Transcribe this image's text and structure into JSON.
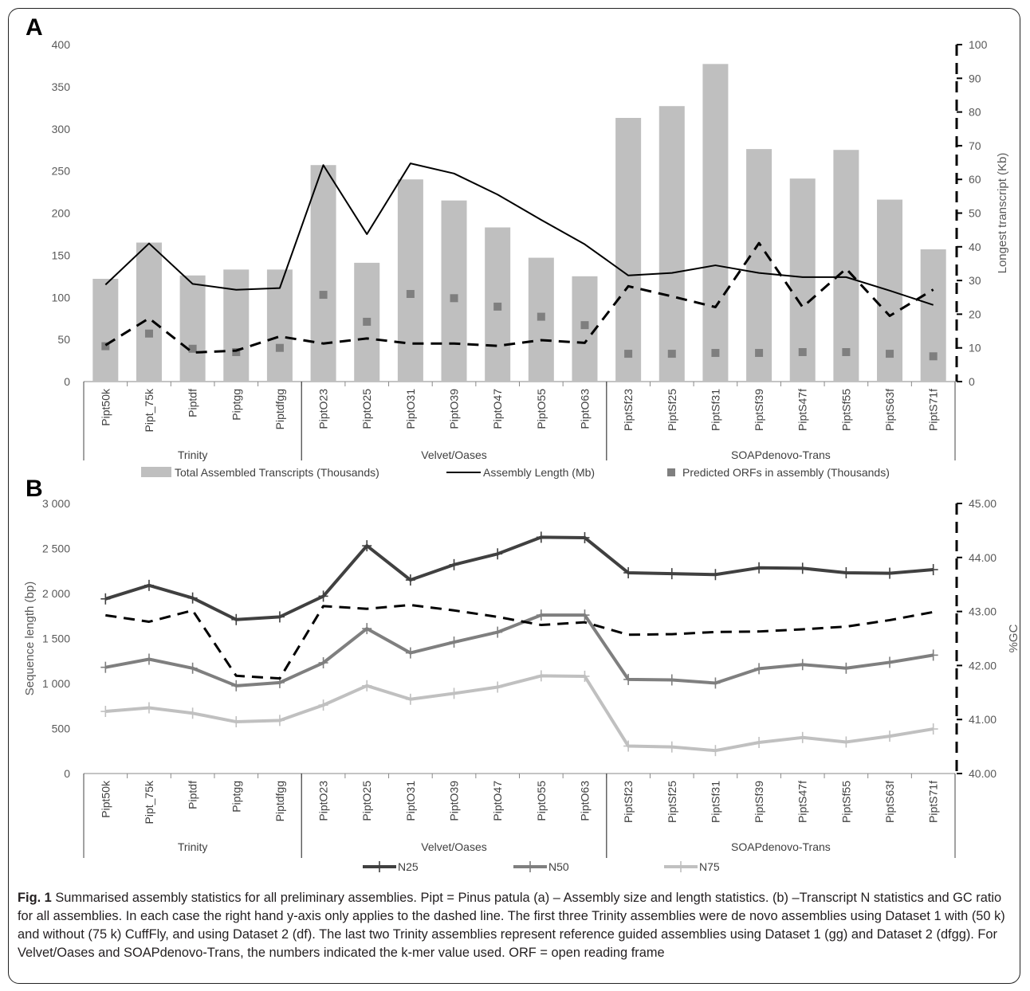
{
  "panel_a": {
    "label": "A",
    "left_ticks": [
      "0",
      "50",
      "100",
      "150",
      "200",
      "250",
      "300",
      "350",
      "400"
    ],
    "right_ticks": [
      "0",
      "10",
      "20",
      "30",
      "40",
      "50",
      "60",
      "70",
      "80",
      "90",
      "100"
    ],
    "right_axis_title": "Longest transcript (Kb)",
    "legend": [
      "Total Assembled Transcripts (Thousands)",
      "Assembly Length (Mb)",
      "Predicted ORFs in assembly (Thousands)"
    ]
  },
  "panel_b": {
    "label": "B",
    "left_ticks": [
      "0",
      "500",
      "1 000",
      "1 500",
      "2 000",
      "2 500",
      "3 000"
    ],
    "right_ticks": [
      "40.00",
      "41.00",
      "42.00",
      "43.00",
      "44.00",
      "45.00"
    ],
    "left_axis_title": "Sequence length (bp)",
    "right_axis_title": "%GC",
    "legend": [
      "N25",
      "N50",
      "N75"
    ]
  },
  "categories": [
    "Pipt50k",
    "Pipt_75k",
    "Piptdf",
    "Piptgg",
    "Piptdfgg",
    "PiptO23",
    "PiptO25",
    "PiptO31",
    "PiptO39",
    "PiptO47",
    "PiptO55",
    "PiptO63",
    "PiptSf23",
    "PiptSf25",
    "PiptSf31",
    "PiptSf39",
    "PiptS47f",
    "PiptSf55",
    "PiptS63f",
    "PiptS71f"
  ],
  "groups": [
    {
      "name": "Trinity",
      "start": 0,
      "end": 4
    },
    {
      "name": "Velvet/Oases",
      "start": 5,
      "end": 11
    },
    {
      "name": "SOAPdenovo-Trans",
      "start": 12,
      "end": 19
    }
  ],
  "chart_data": [
    {
      "type": "bar",
      "categories": [
        "Pipt50k",
        "Pipt_75k",
        "Piptdf",
        "Piptgg",
        "Piptdfgg",
        "PiptO23",
        "PiptO25",
        "PiptO31",
        "PiptO39",
        "PiptO47",
        "PiptO55",
        "PiptO63",
        "PiptSf23",
        "PiptSf25",
        "PiptSf31",
        "PiptSf39",
        "PiptS47f",
        "PiptSf55",
        "PiptS63f",
        "PiptS71f"
      ],
      "ylim": [
        0,
        400
      ],
      "y2lim": [
        0,
        100
      ],
      "series": [
        {
          "name": "Total Assembled Transcripts (Thousands)",
          "type": "bar",
          "axis": "left",
          "color": "#bfbfbf",
          "values": [
            122,
            165,
            126,
            133,
            133,
            257,
            141,
            240,
            215,
            183,
            147,
            125,
            313,
            327,
            377,
            276,
            241,
            275,
            216,
            157
          ]
        },
        {
          "name": "Assembly Length (Mb)",
          "type": "line",
          "axis": "left",
          "color": "#000000",
          "values": [
            115,
            164,
            116,
            109,
            111,
            257,
            175,
            259,
            247,
            222,
            192,
            163,
            126,
            129,
            138,
            129,
            124,
            124,
            108,
            91
          ]
        },
        {
          "name": "Predicted ORFs in assembly (Thousands)",
          "type": "scatter",
          "axis": "left",
          "color": "#7f7f7f",
          "values": [
            42,
            57,
            39,
            35,
            40,
            103,
            71,
            104,
            99,
            89,
            77,
            67,
            33,
            33,
            34,
            34,
            35,
            35,
            33,
            30
          ]
        },
        {
          "axis": "right",
          "type": "line",
          "dashed": true,
          "color": "#000000",
          "values": [
            10.8,
            18.8,
            8.6,
            9.2,
            13.4,
            11.3,
            12.8,
            11.3,
            11.3,
            10.6,
            12.3,
            11.5,
            28.3,
            25.3,
            22.1,
            41.1,
            22.1,
            33.5,
            19.5,
            27.3
          ]
        }
      ]
    },
    {
      "type": "line",
      "categories": [
        "Pipt50k",
        "Pipt_75k",
        "Piptdf",
        "Piptgg",
        "Piptdfgg",
        "PiptO23",
        "PiptO25",
        "PiptO31",
        "PiptO39",
        "PiptO47",
        "PiptO55",
        "PiptO63",
        "PiptSf23",
        "PiptSf25",
        "PiptSf31",
        "PiptSf39",
        "PiptS47f",
        "PiptSf55",
        "PiptS63f",
        "PiptS71f"
      ],
      "ylim": [
        0,
        3000
      ],
      "y2lim": [
        40,
        45
      ],
      "series": [
        {
          "name": "N25",
          "axis": "left",
          "color": "#404040",
          "values": [
            1940,
            2090,
            1950,
            1710,
            1740,
            1970,
            2530,
            2150,
            2320,
            2440,
            2625,
            2620,
            2230,
            2220,
            2210,
            2285,
            2280,
            2230,
            2225,
            2265
          ]
        },
        {
          "name": "N50",
          "axis": "left",
          "color": "#7f7f7f",
          "values": [
            1180,
            1270,
            1170,
            975,
            1010,
            1230,
            1610,
            1340,
            1460,
            1570,
            1760,
            1760,
            1045,
            1040,
            1005,
            1165,
            1210,
            1170,
            1235,
            1315
          ]
        },
        {
          "name": "N75",
          "axis": "left",
          "color": "#c0c0c0",
          "values": [
            690,
            730,
            670,
            575,
            590,
            760,
            975,
            825,
            890,
            960,
            1085,
            1080,
            305,
            295,
            255,
            345,
            400,
            350,
            415,
            495
          ]
        },
        {
          "axis": "right",
          "type": "line",
          "dashed": true,
          "color": "#000000",
          "values": [
            42.93,
            42.81,
            43.02,
            41.81,
            41.76,
            43.1,
            43.05,
            43.12,
            43.02,
            42.9,
            42.75,
            42.8,
            42.57,
            42.58,
            42.62,
            42.63,
            42.67,
            42.72,
            42.84,
            42.99
          ]
        }
      ]
    }
  ],
  "caption": {
    "fig_label": "Fig. 1",
    "text": "Summarised assembly statistics for all preliminary assemblies. Pipt = Pinus patula (a) – Assembly size and length statistics. (b) –Transcript N statistics and GC ratio for all assemblies. In each case the right hand y-axis only applies to the dashed line. The first three Trinity assemblies were de novo assemblies using Dataset 1 with (50 k) and without (75 k) CuffFly, and using Dataset 2 (df). The last two Trinity assemblies represent reference guided assemblies using Dataset 1 (gg) and Dataset 2 (dfgg). For Velvet/Oases and SOAPdenovo-Trans, the numbers indicated the k-mer value used. ORF = open reading frame"
  }
}
